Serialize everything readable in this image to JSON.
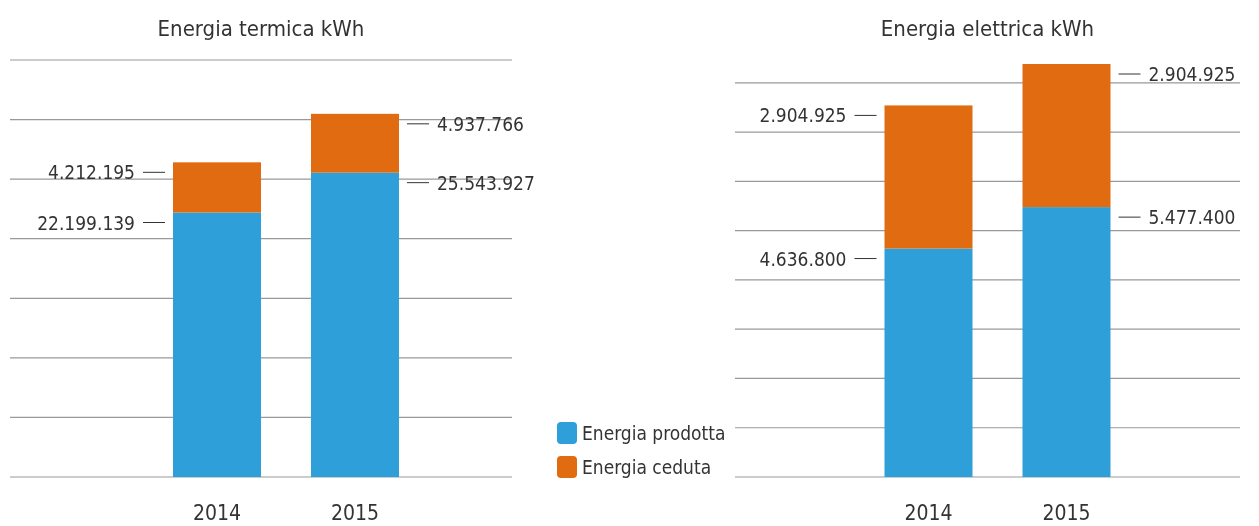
{
  "chart_data": [
    {
      "type": "bar",
      "title": "Energia termica kWh",
      "categories": [
        "2014",
        "2015"
      ],
      "stacked": true,
      "ylim": [
        0,
        35000000
      ],
      "yticks": [
        {
          "value": 0,
          "label": null
        },
        {
          "value": 5000000,
          "label": null
        },
        {
          "value": 10000000,
          "label": null
        },
        {
          "value": 15000000,
          "label": null
        },
        {
          "value": 20000000,
          "label": null
        },
        {
          "value": 25000000,
          "label": null
        },
        {
          "value": 30000000,
          "label": null
        },
        {
          "value": 35000000,
          "label": null
        }
      ],
      "tick_labels": "x",
      "grid": "y",
      "legend": "bottom right",
      "series": [
        {
          "name": "Energia prodotta",
          "color": "#2e9fd8",
          "values": [
            22199139,
            25543927
          ],
          "value_labels": [
            "22.199.139",
            "25.543.927"
          ]
        },
        {
          "name": "Energia ceduta",
          "color": "#e06b10",
          "values": [
            4212195,
            4937766
          ],
          "value_labels": [
            "4.212.195",
            "4.937.766"
          ]
        }
      ]
    },
    {
      "type": "bar",
      "title": "Energia elettrica kWh",
      "categories": [
        "2014",
        "2015"
      ],
      "stacked": true,
      "yticks": [
        {
          "value": 0,
          "label": null
        },
        {
          "value": 1000000,
          "label": null
        },
        {
          "value": 2000000,
          "label": null
        },
        {
          "value": 3000000,
          "label": null
        },
        {
          "value": 4000000,
          "label": null
        },
        {
          "value": 5000000,
          "label": null
        },
        {
          "value": 6000000,
          "label": null
        },
        {
          "value": 7000000,
          "label": null
        },
        {
          "value": 8000000,
          "label": null
        }
      ],
      "tick_labels": "x",
      "grid": "y",
      "series": [
        {
          "color": "#2e9fd8",
          "values": [
            4636800,
            5477400
          ],
          "value_labels": [
            "4.636.800",
            "5.477.400"
          ]
        },
        {
          "color": "#e06b10",
          "values": [
            2904925,
            2904925
          ],
          "value_labels": [
            "2.904.925",
            "2.904.925"
          ]
        }
      ]
    }
  ]
}
